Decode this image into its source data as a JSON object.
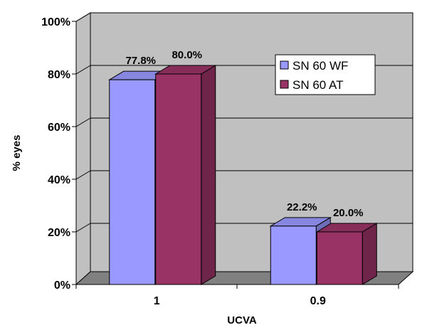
{
  "chart_data": {
    "type": "bar",
    "categories": [
      "1",
      "0.9"
    ],
    "series": [
      {
        "name": "SN 60 WF",
        "values": [
          77.8,
          22.2
        ],
        "labels": [
          "77.8%",
          "22.2%"
        ],
        "color": "#9999ff"
      },
      {
        "name": "SN 60 AT",
        "values": [
          80.0,
          20.0
        ],
        "labels": [
          "80.0%",
          "20.0%"
        ],
        "color": "#993366"
      }
    ],
    "title": "",
    "xlabel": "UCVA",
    "ylabel": "% eyes",
    "ylim": [
      0,
      100
    ],
    "yticks": [
      "0%",
      "20%",
      "40%",
      "60%",
      "80%",
      "100%"
    ],
    "grid": true,
    "legend": "top-right",
    "style": "3d"
  }
}
